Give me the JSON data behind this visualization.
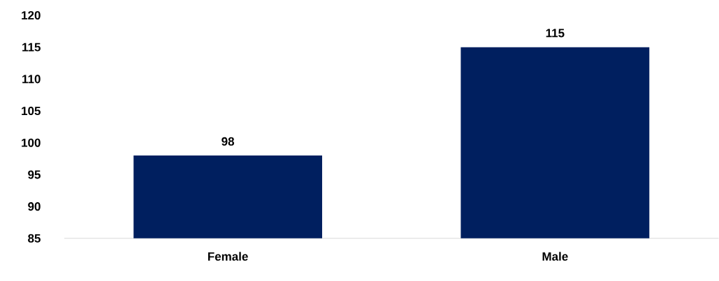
{
  "chart_data": {
    "type": "bar",
    "categories": [
      "Female",
      "Male"
    ],
    "values": [
      98,
      115
    ],
    "color": "#001f5f",
    "ylim": [
      85,
      120
    ],
    "yticks": [
      85,
      90,
      95,
      100,
      105,
      110,
      115,
      120
    ],
    "data_labels": true,
    "grid": false
  }
}
